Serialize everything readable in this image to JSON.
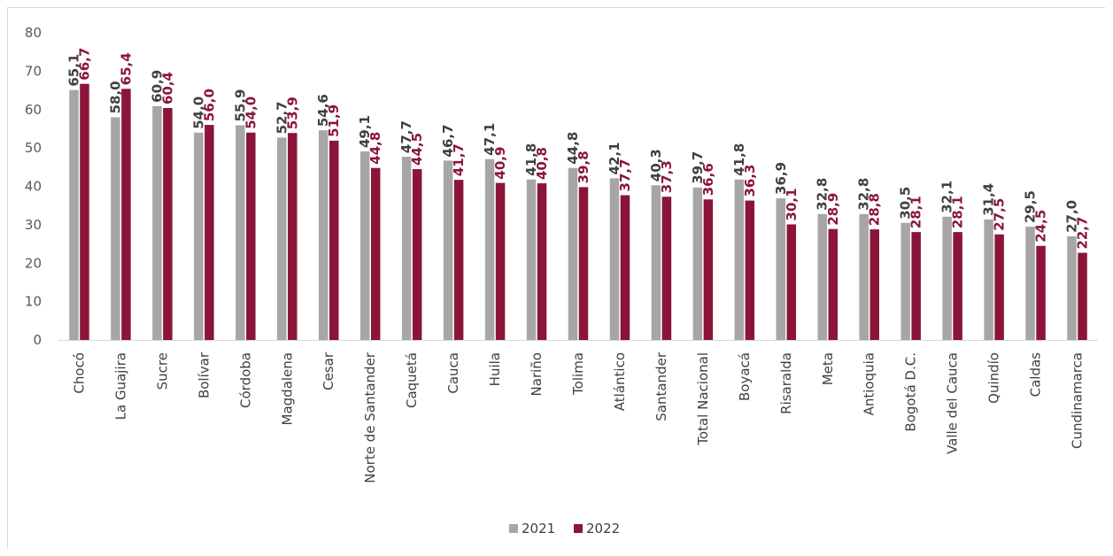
{
  "chart_data": {
    "type": "bar",
    "categories": [
      "Chocó",
      "La Guajira",
      "Sucre",
      "Bolívar",
      "Córdoba",
      "Magdalena",
      "Cesar",
      "Norte de Santander",
      "Caquetá",
      "Cauca",
      "Huila",
      "Nariño",
      "Tolima",
      "Atlántico",
      "Santander",
      "Total Nacional",
      "Boyacá",
      "Risaralda",
      "Meta",
      "Antioquia",
      "Bogotá D.C.",
      "Valle del Cauca",
      "Quindío",
      "Caldas",
      "Cundinamarca"
    ],
    "series": [
      {
        "name": "2021",
        "color": "#a6a6a6",
        "label_color": "#404040",
        "values": [
          65.1,
          58.0,
          60.9,
          54.0,
          55.9,
          52.7,
          54.6,
          49.1,
          47.7,
          46.7,
          47.1,
          41.8,
          44.8,
          42.1,
          40.3,
          39.7,
          41.8,
          36.9,
          32.8,
          32.8,
          30.5,
          32.1,
          31.4,
          29.5,
          27.0
        ],
        "labels": [
          "65,1",
          "58,0",
          "60,9",
          "54,0",
          "55,9",
          "52,7",
          "54,6",
          "49,1",
          "47,7",
          "46,7",
          "47,1",
          "41,8",
          "44,8",
          "42,1",
          "40,3",
          "39,7",
          "41,8",
          "36,9",
          "32,8",
          "32,8",
          "30,5",
          "32,1",
          "31,4",
          "29,5",
          "27,0"
        ]
      },
      {
        "name": "2022",
        "color": "#8b1538",
        "label_color": "#8b1538",
        "values": [
          66.7,
          65.4,
          60.4,
          56.0,
          54.0,
          53.9,
          51.9,
          44.8,
          44.5,
          41.7,
          40.9,
          40.8,
          39.8,
          37.7,
          37.3,
          36.6,
          36.3,
          30.1,
          28.9,
          28.8,
          28.1,
          28.1,
          27.5,
          24.5,
          22.7
        ],
        "labels": [
          "66,7",
          "65,4",
          "60,4",
          "56,0",
          "54,0",
          "53,9",
          "51,9",
          "44,8",
          "44,5",
          "41,7",
          "40,9",
          "40,8",
          "39,8",
          "37,7",
          "37,3",
          "36,6",
          "36,3",
          "30,1",
          "28,9",
          "28,8",
          "28,1",
          "28,1",
          "27,5",
          "24,5",
          "22,7"
        ]
      }
    ],
    "ylim": [
      0,
      80
    ],
    "yticks": [
      "0",
      "10",
      "20",
      "30",
      "40",
      "50",
      "60",
      "70",
      "80"
    ],
    "grid": false,
    "legend_position": "bottom-center"
  }
}
